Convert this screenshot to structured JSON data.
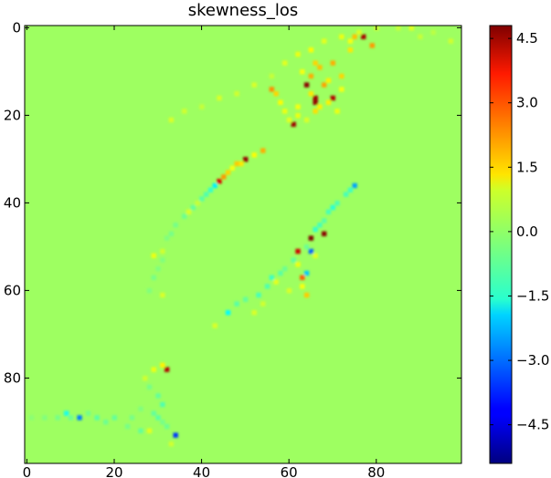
{
  "chart_data": {
    "type": "heatmap",
    "title": "skewness_los",
    "xlabel": "",
    "ylabel": "",
    "x_range": [
      0,
      99
    ],
    "y_range": [
      0,
      99
    ],
    "y_inverted": true,
    "x_ticks": [
      0,
      20,
      40,
      60,
      80
    ],
    "y_ticks": [
      0,
      20,
      40,
      60,
      80
    ],
    "background_value": 0.0,
    "colormap": "jet",
    "colorbar": {
      "vmin": -5.4,
      "vmax": 4.8,
      "ticks": [
        4.5,
        3.0,
        1.5,
        0.0,
        -1.5,
        -3.0,
        -4.5
      ],
      "tick_labels": [
        "4.5",
        "3.0",
        "1.5",
        "0.0",
        "−1.5",
        "−3.0",
        "−4.5"
      ]
    },
    "features": [
      {
        "id": "upper-arc",
        "cells": [
          [
            33,
            21,
            0.6
          ],
          [
            36,
            19,
            0.5
          ],
          [
            40,
            18,
            0.4
          ],
          [
            44,
            16,
            0.6
          ],
          [
            48,
            15,
            0.5
          ],
          [
            52,
            13,
            0.6
          ],
          [
            56,
            11,
            0.4
          ],
          [
            59,
            8,
            0.7
          ],
          [
            62,
            6,
            0.8
          ],
          [
            65,
            5,
            1.0
          ],
          [
            68,
            3,
            0.7
          ],
          [
            72,
            2,
            0.8
          ],
          [
            76,
            1,
            0.6
          ],
          [
            80,
            0,
            0.5
          ],
          [
            85,
            0,
            0.4
          ],
          [
            88,
            0,
            0.7
          ],
          [
            90,
            2,
            0.4
          ],
          [
            93,
            1,
            0.3
          ],
          [
            97,
            3,
            0.5
          ],
          [
            74,
            3,
            0.9
          ],
          [
            70,
            8,
            1.8
          ],
          [
            72,
            11,
            1.4
          ],
          [
            74,
            5,
            1.2
          ],
          [
            67,
            9,
            1.6
          ],
          [
            68,
            13,
            1.9
          ],
          [
            69,
            17,
            1.1
          ]
        ]
      },
      {
        "id": "ridge-20",
        "cells": [
          [
            63,
            10,
            0.9
          ],
          [
            64,
            13,
            4.7
          ],
          [
            65,
            11,
            1.8
          ],
          [
            65,
            15,
            1.2
          ],
          [
            66,
            16,
            4.5
          ],
          [
            66,
            17,
            4.6
          ],
          [
            67,
            18,
            1.1
          ],
          [
            70,
            16,
            4.3
          ],
          [
            61,
            22,
            4.5
          ],
          [
            62,
            20,
            0.8
          ],
          [
            62,
            18,
            0.9
          ],
          [
            56,
            14,
            2.1
          ],
          [
            57,
            15,
            1.4
          ],
          [
            58,
            17,
            1.0
          ],
          [
            59,
            19,
            0.8
          ],
          [
            60,
            21,
            0.7
          ],
          [
            64,
            21,
            0.6
          ],
          [
            66,
            19,
            1.3
          ],
          [
            71,
            19,
            0.8
          ],
          [
            72,
            14,
            0.9
          ],
          [
            75,
            2,
            1.6
          ],
          [
            77,
            2,
            4.4
          ],
          [
            79,
            4,
            2.0
          ],
          [
            66,
            8,
            1.4
          ],
          [
            69,
            12,
            1.1
          ]
        ]
      },
      {
        "id": "middle-arc",
        "cells": [
          [
            54,
            28,
            1.8
          ],
          [
            52,
            29,
            1.0
          ],
          [
            50,
            30,
            4.6
          ],
          [
            49,
            31,
            1.2
          ],
          [
            47,
            32,
            0.9
          ],
          [
            46,
            33,
            1.4
          ],
          [
            44,
            35,
            3.9
          ],
          [
            43,
            36,
            -1.7
          ],
          [
            42,
            37,
            -1.1
          ],
          [
            41,
            38,
            -0.8
          ],
          [
            40,
            39,
            -0.7
          ],
          [
            38,
            41,
            -0.6
          ],
          [
            36,
            43,
            -0.5
          ],
          [
            34,
            45,
            -0.4
          ],
          [
            32,
            48,
            -0.3
          ],
          [
            31,
            51,
            0.5
          ],
          [
            29,
            52,
            0.8
          ],
          [
            30,
            55,
            -0.3
          ],
          [
            29,
            57,
            -0.4
          ],
          [
            28,
            60,
            -0.3
          ],
          [
            31,
            61,
            0.6
          ],
          [
            48,
            31,
            1.5
          ],
          [
            45,
            34,
            2.0
          ],
          [
            39,
            40,
            0.4
          ],
          [
            37,
            42,
            0.6
          ],
          [
            33,
            47,
            -0.4
          ],
          [
            31,
            53,
            -0.3
          ]
        ]
      },
      {
        "id": "lower-arc",
        "cells": [
          [
            75,
            36,
            -2.5
          ],
          [
            74,
            37,
            -1.0
          ],
          [
            73,
            38,
            -0.9
          ],
          [
            71,
            40,
            -0.8
          ],
          [
            70,
            41,
            -1.2
          ],
          [
            69,
            42,
            -0.9
          ],
          [
            68,
            44,
            -0.7
          ],
          [
            67,
            45,
            -0.9
          ],
          [
            66,
            46,
            -1.1
          ],
          [
            68,
            47,
            4.7
          ],
          [
            65,
            48,
            4.8
          ],
          [
            64,
            50,
            -0.5
          ],
          [
            65,
            51,
            -3.1
          ],
          [
            62,
            51,
            4.0
          ],
          [
            61,
            53,
            -0.6
          ],
          [
            59,
            55,
            -0.5
          ],
          [
            58,
            56,
            -0.7
          ],
          [
            56,
            57,
            -1.0
          ],
          [
            55,
            59,
            -0.8
          ],
          [
            53,
            61,
            -0.9
          ],
          [
            50,
            62,
            -0.6
          ],
          [
            48,
            63,
            -0.7
          ],
          [
            46,
            65,
            -1.6
          ],
          [
            43,
            68,
            0.6
          ],
          [
            64,
            56,
            -2.1
          ],
          [
            63,
            57,
            2.6
          ],
          [
            64,
            61,
            1.5
          ],
          [
            63,
            59,
            0.9
          ],
          [
            60,
            60,
            0.6
          ],
          [
            57,
            58,
            0.7
          ],
          [
            54,
            63,
            0.5
          ],
          [
            52,
            65,
            0.6
          ],
          [
            62,
            54,
            0.8
          ],
          [
            66,
            52,
            0.7
          ]
        ]
      },
      {
        "id": "bottom-left",
        "cells": [
          [
            32,
            78,
            4.3
          ],
          [
            31,
            77,
            1.1
          ],
          [
            29,
            78,
            0.8
          ],
          [
            27,
            80,
            0.5
          ],
          [
            28,
            82,
            -0.4
          ],
          [
            30,
            84,
            -0.6
          ],
          [
            31,
            86,
            -0.8
          ],
          [
            29,
            88,
            -0.6
          ],
          [
            30,
            89,
            -0.7
          ],
          [
            31,
            90,
            -0.4
          ],
          [
            34,
            93,
            -3.6
          ],
          [
            32,
            91,
            -0.5
          ],
          [
            33,
            95,
            0.5
          ],
          [
            26,
            87,
            -0.3
          ],
          [
            24,
            89,
            -0.4
          ],
          [
            20,
            89,
            -0.6
          ],
          [
            18,
            90,
            -0.5
          ],
          [
            16,
            89,
            -0.7
          ],
          [
            14,
            88,
            -0.4
          ],
          [
            12,
            89,
            -2.9
          ],
          [
            10,
            89,
            -0.5
          ],
          [
            9,
            88,
            -1.4
          ],
          [
            7,
            89,
            -0.4
          ],
          [
            4,
            89,
            -0.3
          ],
          [
            1,
            89,
            -0.2
          ],
          [
            26,
            92,
            -0.6
          ],
          [
            28,
            92,
            0.7
          ],
          [
            23,
            91,
            -0.4
          ]
        ]
      }
    ]
  }
}
